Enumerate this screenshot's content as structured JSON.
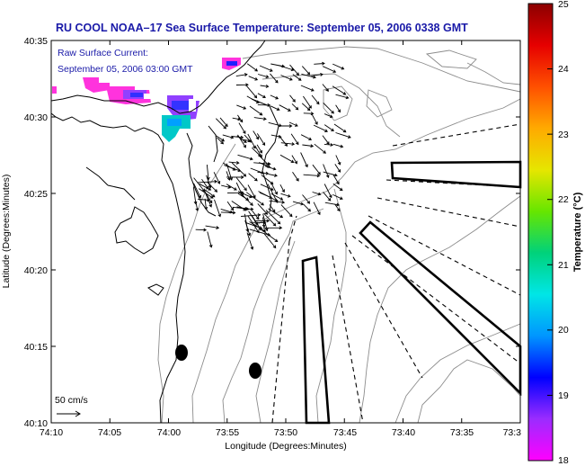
{
  "title": "RU COOL  NOAA–17  Sea Surface Temperature:  September 05, 2006 0338 GMT",
  "current_note": {
    "line1": "Raw Surface Current:",
    "line2": "September 05, 2006 03:00 GMT"
  },
  "axes": {
    "xlabel": "Longitude (Degrees:Minutes)",
    "ylabel": "Latitude (Degrees:Minutes)",
    "x_ticks": [
      "74:10",
      "74:05",
      "74:00",
      "73:55",
      "73:50",
      "73:45",
      "73:40",
      "73:35",
      "73:3"
    ],
    "y_ticks": [
      "40:35",
      "40:30",
      "40:25",
      "40:20",
      "40:15",
      "40:10"
    ]
  },
  "colorbar": {
    "label": "Temperature (°C)",
    "min": 18,
    "max": 25,
    "ticks": [
      "25",
      "24",
      "23",
      "22",
      "21",
      "20",
      "19",
      "18"
    ],
    "colors": [
      "#ff00ff",
      "#9b2cff",
      "#0000ff",
      "#0096ff",
      "#00e6e6",
      "#00d27a",
      "#66e600",
      "#e6e600",
      "#ffaa00",
      "#ff5000",
      "#e60000",
      "#8b0000"
    ]
  },
  "scale_arrow": {
    "label": "50 cm/s"
  },
  "colors": {
    "title": "#1a1aa8",
    "land": "#ffffff",
    "contour": "#8c8c8c",
    "coast": "#000000"
  }
}
